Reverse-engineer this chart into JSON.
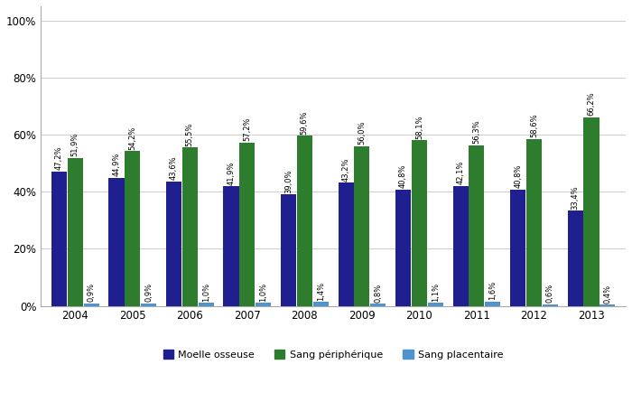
{
  "years": [
    "2004",
    "2005",
    "2006",
    "2007",
    "2008",
    "2009",
    "2010",
    "2011",
    "2012",
    "2013"
  ],
  "moelle_osseuse": [
    47.2,
    44.9,
    43.6,
    41.9,
    39.0,
    43.2,
    40.8,
    42.1,
    40.8,
    33.4
  ],
  "sang_peripherique": [
    51.9,
    54.2,
    55.5,
    57.2,
    59.6,
    56.0,
    58.1,
    56.3,
    58.6,
    66.2
  ],
  "sang_placentaire": [
    0.9,
    0.9,
    1.0,
    1.0,
    1.4,
    0.8,
    1.1,
    1.6,
    0.6,
    0.4
  ],
  "moelle_labels": [
    "47,2%",
    "44,9%",
    "43,6%",
    "41,9%",
    "39,0%",
    "43,2%",
    "40,8%",
    "42,1%",
    "40,8%",
    "33,4%"
  ],
  "peripherique_labels": [
    "51,9%",
    "54,2%",
    "55,5%",
    "57,2%",
    "59,6%",
    "56,0%",
    "58,1%",
    "56,3%",
    "58,6%",
    "66,2%"
  ],
  "placentaire_labels": [
    "0,9%",
    "0,9%",
    "1,0%",
    "1,0%",
    "1,4%",
    "0,8%",
    "1,1%",
    "1,6%",
    "0,6%",
    "0,4%"
  ],
  "color_moelle": "#1F1F8F",
  "color_peripherique": "#2E7D2E",
  "color_placentaire": "#4F94CD",
  "legend_moelle": "Moelle osseuse",
  "legend_peripherique": "Sang périphérique",
  "legend_placentaire": "Sang placentaire",
  "yticks": [
    0,
    20,
    40,
    60,
    80,
    100
  ],
  "ylim": [
    0,
    105
  ],
  "background_color": "#ffffff",
  "grid_color": "#cccccc"
}
